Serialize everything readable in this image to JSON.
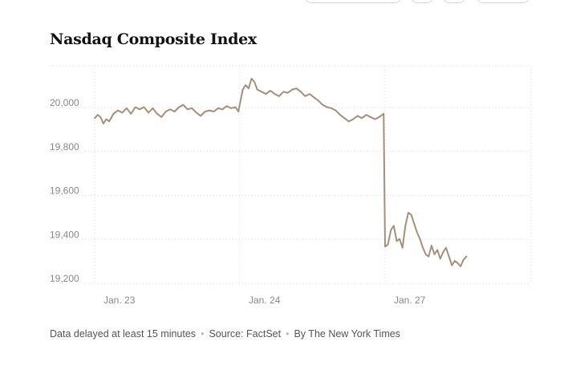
{
  "chart_data": {
    "type": "line",
    "title": "Nasdaq Composite Index",
    "xlabel": "",
    "ylabel": "",
    "ylim": [
      19170,
      20210
    ],
    "y_ticks": [
      20000,
      19800,
      19600,
      19400,
      19200
    ],
    "y_tick_labels": [
      "20,000",
      "19,800",
      "19,600",
      "19,400",
      "19,200"
    ],
    "x_tick_labels": [
      "Jan. 23",
      "Jan. 24",
      "Jan. 27"
    ],
    "x_tick_positions": [
      0,
      1,
      2
    ],
    "x_range": [
      0,
      3
    ],
    "grid": true,
    "line_color": "#a4907a",
    "series": [
      {
        "values": [
          [
            0.0,
            19930
          ],
          [
            0.02,
            19945
          ],
          [
            0.04,
            19935
          ],
          [
            0.06,
            19905
          ],
          [
            0.08,
            19925
          ],
          [
            0.1,
            19915
          ],
          [
            0.13,
            19950
          ],
          [
            0.16,
            19965
          ],
          [
            0.19,
            19955
          ],
          [
            0.22,
            19975
          ],
          [
            0.25,
            19950
          ],
          [
            0.28,
            19980
          ],
          [
            0.31,
            19970
          ],
          [
            0.34,
            19980
          ],
          [
            0.37,
            19955
          ],
          [
            0.4,
            19975
          ],
          [
            0.43,
            19950
          ],
          [
            0.46,
            19935
          ],
          [
            0.49,
            19960
          ],
          [
            0.52,
            19970
          ],
          [
            0.55,
            19960
          ],
          [
            0.58,
            19980
          ],
          [
            0.61,
            19990
          ],
          [
            0.64,
            19970
          ],
          [
            0.67,
            19975
          ],
          [
            0.7,
            19955
          ],
          [
            0.73,
            19940
          ],
          [
            0.76,
            19960
          ],
          [
            0.79,
            19965
          ],
          [
            0.82,
            19960
          ],
          [
            0.85,
            19975
          ],
          [
            0.88,
            19970
          ],
          [
            0.91,
            19985
          ],
          [
            0.94,
            19975
          ],
          [
            0.97,
            19980
          ],
          [
            0.99,
            19960
          ],
          [
            1.0,
            19995
          ],
          [
            1.02,
            20060
          ],
          [
            1.04,
            20080
          ],
          [
            1.06,
            20065
          ],
          [
            1.08,
            20110
          ],
          [
            1.1,
            20095
          ],
          [
            1.12,
            20060
          ],
          [
            1.15,
            20050
          ],
          [
            1.18,
            20040
          ],
          [
            1.21,
            20055
          ],
          [
            1.24,
            20040
          ],
          [
            1.27,
            20030
          ],
          [
            1.3,
            20050
          ],
          [
            1.33,
            20045
          ],
          [
            1.36,
            20060
          ],
          [
            1.39,
            20065
          ],
          [
            1.42,
            20050
          ],
          [
            1.45,
            20030
          ],
          [
            1.48,
            20040
          ],
          [
            1.51,
            20025
          ],
          [
            1.54,
            20010
          ],
          [
            1.57,
            19990
          ],
          [
            1.6,
            19980
          ],
          [
            1.63,
            19975
          ],
          [
            1.66,
            19965
          ],
          [
            1.69,
            19945
          ],
          [
            1.72,
            19930
          ],
          [
            1.75,
            19915
          ],
          [
            1.78,
            19925
          ],
          [
            1.81,
            19940
          ],
          [
            1.84,
            19930
          ],
          [
            1.87,
            19945
          ],
          [
            1.9,
            19935
          ],
          [
            1.93,
            19925
          ],
          [
            1.96,
            19935
          ],
          [
            1.99,
            19950
          ],
          [
            2.0,
            19345
          ],
          [
            2.02,
            19355
          ],
          [
            2.04,
            19420
          ],
          [
            2.06,
            19440
          ],
          [
            2.08,
            19370
          ],
          [
            2.1,
            19380
          ],
          [
            2.12,
            19340
          ],
          [
            2.14,
            19440
          ],
          [
            2.16,
            19500
          ],
          [
            2.18,
            19490
          ],
          [
            2.2,
            19450
          ],
          [
            2.22,
            19410
          ],
          [
            2.24,
            19380
          ],
          [
            2.26,
            19340
          ],
          [
            2.28,
            19310
          ],
          [
            2.3,
            19300
          ],
          [
            2.32,
            19350
          ],
          [
            2.34,
            19310
          ],
          [
            2.36,
            19330
          ],
          [
            2.38,
            19290
          ],
          [
            2.4,
            19320
          ],
          [
            2.42,
            19340
          ],
          [
            2.44,
            19300
          ],
          [
            2.46,
            19260
          ],
          [
            2.48,
            19280
          ],
          [
            2.5,
            19270
          ],
          [
            2.52,
            19255
          ],
          [
            2.54,
            19285
          ],
          [
            2.56,
            19300
          ]
        ]
      }
    ]
  },
  "footer": {
    "delay_note": "Data delayed at least 15 minutes",
    "source": "Source: FactSet",
    "byline": "By The New York Times"
  },
  "colors": {
    "line": "#a4907a",
    "grid": "#d9d9d9",
    "title": "#121212",
    "tick_text": "#888888"
  }
}
